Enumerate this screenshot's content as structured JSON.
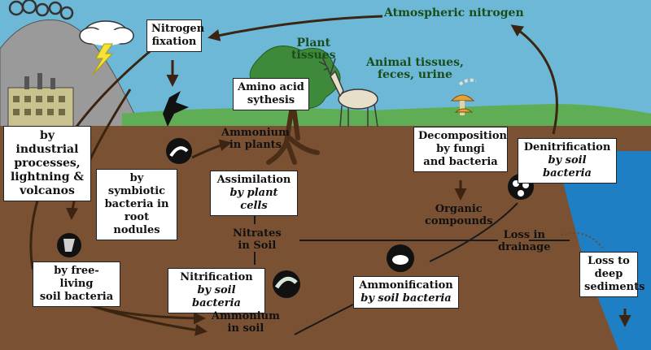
{
  "labels": {
    "atmospheric_nitrogen": "Atmospheric nitrogen",
    "nitrogen_fixation": [
      "Nitrogen",
      "fixation"
    ],
    "plant_tissues": [
      "Plant",
      "tissues"
    ],
    "animal_tissues": [
      "Animal tissues,",
      "feces, urine"
    ],
    "amino_acid": [
      "Amino acid",
      "sythesis"
    ],
    "ammonium_plants": [
      "Ammonium",
      "in plants"
    ],
    "industrial": [
      "by industrial",
      "processes,",
      "lightning &",
      "volcanos"
    ],
    "symbiotic": [
      "by symbiotic",
      "bacteria in",
      "root nodules"
    ],
    "assimilation": [
      "Assimilation",
      "by plant cells"
    ],
    "decomposition": [
      "Decomposition",
      "by fungi",
      "and bacteria"
    ],
    "denitrification": [
      "Denitrification",
      "by soil bacteria"
    ],
    "organic": [
      "Organic",
      "compounds"
    ],
    "nitrates": [
      "Nitrates",
      "in Soil"
    ],
    "loss_drainage": [
      "Loss in",
      "drainage"
    ],
    "free_living": [
      "by free-living",
      "soil bacteria"
    ],
    "nitrification": [
      "Nitrification",
      "by soil bacteria"
    ],
    "ammonification": [
      "Ammonification",
      "by soil bacteria"
    ],
    "loss_sediments": [
      "Loss to",
      "deep",
      "sediments"
    ],
    "ammonium_soil": [
      "Ammonium",
      "in soil"
    ]
  },
  "colors": {
    "sky": "#6cb8d6",
    "grass": "#5fae55",
    "soil": "#7a5233",
    "water": "#1f7fc4",
    "volcano": "#9a9a9a",
    "arrow": "#3b2412",
    "box_bg": "#ffffff"
  },
  "icons": [
    "volcano-icon",
    "cloud-icon",
    "lightning-icon",
    "factory-icon",
    "tree-icon",
    "deer-icon",
    "mushroom-icon",
    "worm-icon",
    "bacteria-icon"
  ]
}
